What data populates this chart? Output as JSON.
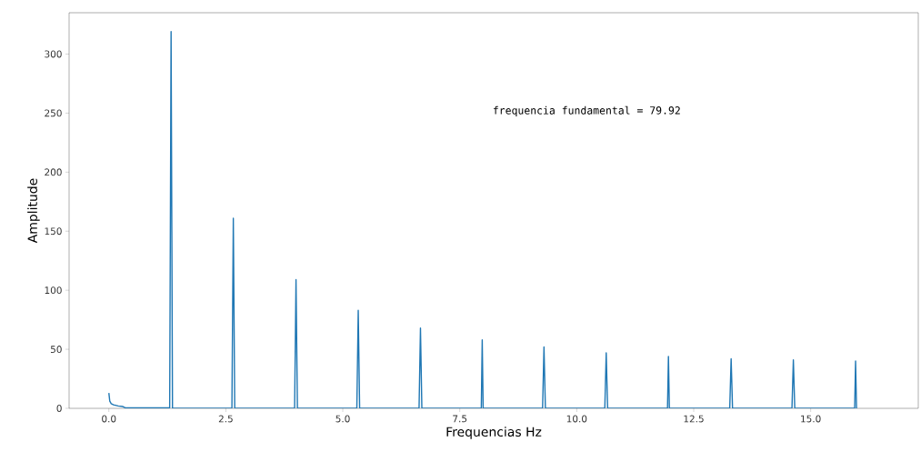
{
  "chart_data": {
    "type": "line",
    "xlabel": "Frequencias Hz",
    "ylabel": "Amplitude",
    "annotations": [
      "frequencia fundamental =  79.92"
    ],
    "series": [
      {
        "color": "#1f77b4",
        "x": [
          0,
          0.02,
          0.05,
          0.1,
          0.15,
          0.2,
          0.3,
          0.35,
          1.3,
          1.33,
          1.36,
          2.63,
          2.66,
          2.69,
          3.97,
          4.0,
          4.03,
          5.3,
          5.33,
          5.36,
          6.63,
          6.66,
          6.69,
          7.96,
          7.98,
          8.0,
          9.27,
          9.3,
          9.33,
          10.6,
          10.63,
          10.66,
          11.94,
          11.96,
          11.98,
          13.27,
          13.3,
          13.33,
          14.6,
          14.63,
          14.66,
          15.94,
          15.96,
          15.98
        ],
        "values": [
          13,
          6,
          4,
          3,
          2.5,
          2,
          1.5,
          0.5,
          0.5,
          319,
          0,
          0,
          161,
          0,
          0,
          109,
          0,
          0,
          83,
          0,
          0,
          68,
          0,
          0,
          58,
          0,
          0,
          52,
          0,
          0,
          47,
          0,
          0,
          44,
          0,
          0,
          42,
          0,
          0,
          41,
          0,
          0,
          40,
          0
        ]
      }
    ],
    "xlim": [
      -0.85,
      17.3
    ],
    "ylim": [
      0,
      335
    ],
    "xticks": [
      {
        "value": 0,
        "label": "0.0"
      },
      {
        "value": 2.5,
        "label": "2.5"
      },
      {
        "value": 5,
        "label": "5.0"
      },
      {
        "value": 7.5,
        "label": "7.5"
      },
      {
        "value": 10,
        "label": "10.0"
      },
      {
        "value": 12.5,
        "label": "12.5"
      },
      {
        "value": 15,
        "label": "15.0"
      }
    ],
    "yticks": [
      0,
      50,
      100,
      150,
      200,
      250,
      300
    ],
    "grid": false,
    "marker": "none",
    "line_style": "solid"
  }
}
